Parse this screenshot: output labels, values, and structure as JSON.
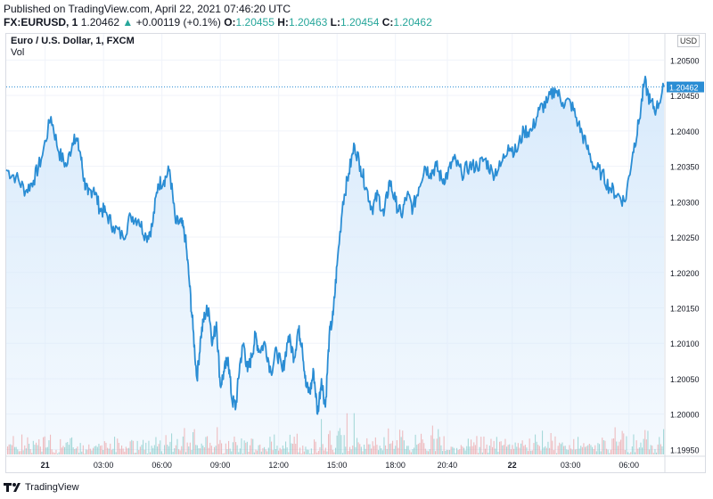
{
  "header": {
    "published": "Published on TradingView.com, April 22, 2021 07:46:20 UTC",
    "symbol": "FX:EURUSD, 1",
    "last_price": "1.20462",
    "change_arrow": "▲",
    "change": "+0.00119 (+0.1%)",
    "o_label": "O:",
    "o_value": "1.20455",
    "h_label": "H:",
    "h_value": "1.20463",
    "l_label": "L:",
    "l_value": "1.20454",
    "c_label": "C:",
    "c_value": "1.20462"
  },
  "legend": {
    "title": "Euro / U.S. Dollar, 1, FXCM",
    "vol": "Vol"
  },
  "currency_button": "USD",
  "footer": {
    "brand": "TradingView"
  },
  "colors": {
    "line": "#2a8dd4",
    "area": "#d6e9fb",
    "vol_up": "#26a69a",
    "vol_down": "#ef5350",
    "price_tag": "#2a8dd4"
  },
  "chart_data": {
    "type": "area",
    "title": "Euro / U.S. Dollar, 1, FXCM",
    "y_ticks": [
      "1.20500",
      "1.20450",
      "1.20400",
      "1.20350",
      "1.20300",
      "1.20250",
      "1.20200",
      "1.20150",
      "1.20100",
      "1.20050",
      "1.20000",
      "1.19950"
    ],
    "x_ticks": [
      "21",
      "03:00",
      "06:00",
      "09:00",
      "12:00",
      "15:00",
      "18:00",
      "20:40",
      "22",
      "03:00",
      "06:00"
    ],
    "x_tick_hours": [
      0,
      3,
      6,
      9,
      12,
      15,
      18,
      20.6667,
      24,
      27,
      30
    ],
    "ylim": [
      1.19943,
      1.20537
    ],
    "xlim_hours": [
      -2.0,
      31.8
    ],
    "last_price": 1.20462,
    "series": [
      {
        "x_hours": [
          -2.0,
          -1.5,
          -1.0,
          -0.6,
          -0.2,
          0.3,
          0.7,
          1.1,
          1.5,
          1.8,
          2.0,
          2.2,
          2.5,
          2.8,
          3.1,
          3.5,
          4.0,
          4.4,
          4.8,
          5.2,
          5.5,
          5.8,
          6.1,
          6.4,
          6.7,
          7.0,
          7.2,
          7.4,
          7.6,
          7.8,
          8.0,
          8.2,
          8.4,
          8.6,
          8.8,
          9.0,
          9.2,
          9.4,
          9.6,
          9.8,
          10.0,
          10.2,
          10.4,
          10.6,
          10.8,
          11.0,
          11.3,
          11.6,
          11.9,
          12.2,
          12.5,
          12.8,
          13.0,
          13.2,
          13.4,
          13.6,
          13.8,
          14.0,
          14.2,
          14.4,
          14.6,
          14.8,
          15.0,
          15.3,
          15.6,
          15.9,
          16.2,
          16.5,
          16.8,
          17.1,
          17.4,
          17.7,
          18.0,
          18.3,
          18.6,
          18.9,
          19.2,
          19.5,
          19.8,
          20.1,
          20.4,
          20.7,
          21.0,
          21.4,
          21.8,
          22.2,
          22.6,
          23.0,
          23.4,
          23.8,
          24.2,
          24.6,
          25.0,
          25.4,
          25.8,
          26.2,
          26.6,
          27.0,
          27.4,
          27.8,
          28.2,
          28.6,
          29.0,
          29.4,
          29.8,
          30.2,
          30.5,
          30.8,
          31.1,
          31.4,
          31.8
        ],
        "values": [
          1.20345,
          1.20335,
          1.20315,
          1.2033,
          1.2036,
          1.2042,
          1.2037,
          1.2035,
          1.20395,
          1.2037,
          1.2033,
          1.2031,
          1.2032,
          1.2029,
          1.20285,
          1.20265,
          1.2025,
          1.2028,
          1.20275,
          1.2025,
          1.20265,
          1.20325,
          1.2033,
          1.20345,
          1.2027,
          1.2027,
          1.2025,
          1.2019,
          1.2012,
          1.2005,
          1.2011,
          1.2014,
          1.2015,
          1.201,
          1.2013,
          1.2004,
          1.2006,
          1.2008,
          1.2002,
          1.2001,
          1.2007,
          1.201,
          1.2006,
          1.2008,
          1.2011,
          1.2009,
          1.201,
          1.2006,
          1.2009,
          1.2006,
          1.2011,
          1.2008,
          1.2012,
          1.201,
          1.2004,
          1.2003,
          1.2006,
          1.2,
          1.2005,
          1.2001,
          1.2011,
          1.2014,
          1.2021,
          1.203,
          1.2034,
          1.2038,
          1.2035,
          1.2032,
          1.2029,
          1.2031,
          1.2028,
          1.2033,
          1.203,
          1.2028,
          1.2031,
          1.2029,
          1.2032,
          1.2035,
          1.2034,
          1.2035,
          1.2033,
          1.2034,
          1.2036,
          1.2034,
          1.2035,
          1.2035,
          1.2036,
          1.2034,
          1.2035,
          1.2038,
          1.2037,
          1.204,
          1.204,
          1.2043,
          1.2044,
          1.2046,
          1.2044,
          1.2044,
          1.2041,
          1.2038,
          1.2035,
          1.2034,
          1.2032,
          1.2031,
          1.203,
          1.2037,
          1.2041,
          1.2047,
          1.2044,
          1.2043,
          1.20462
        ]
      }
    ]
  }
}
